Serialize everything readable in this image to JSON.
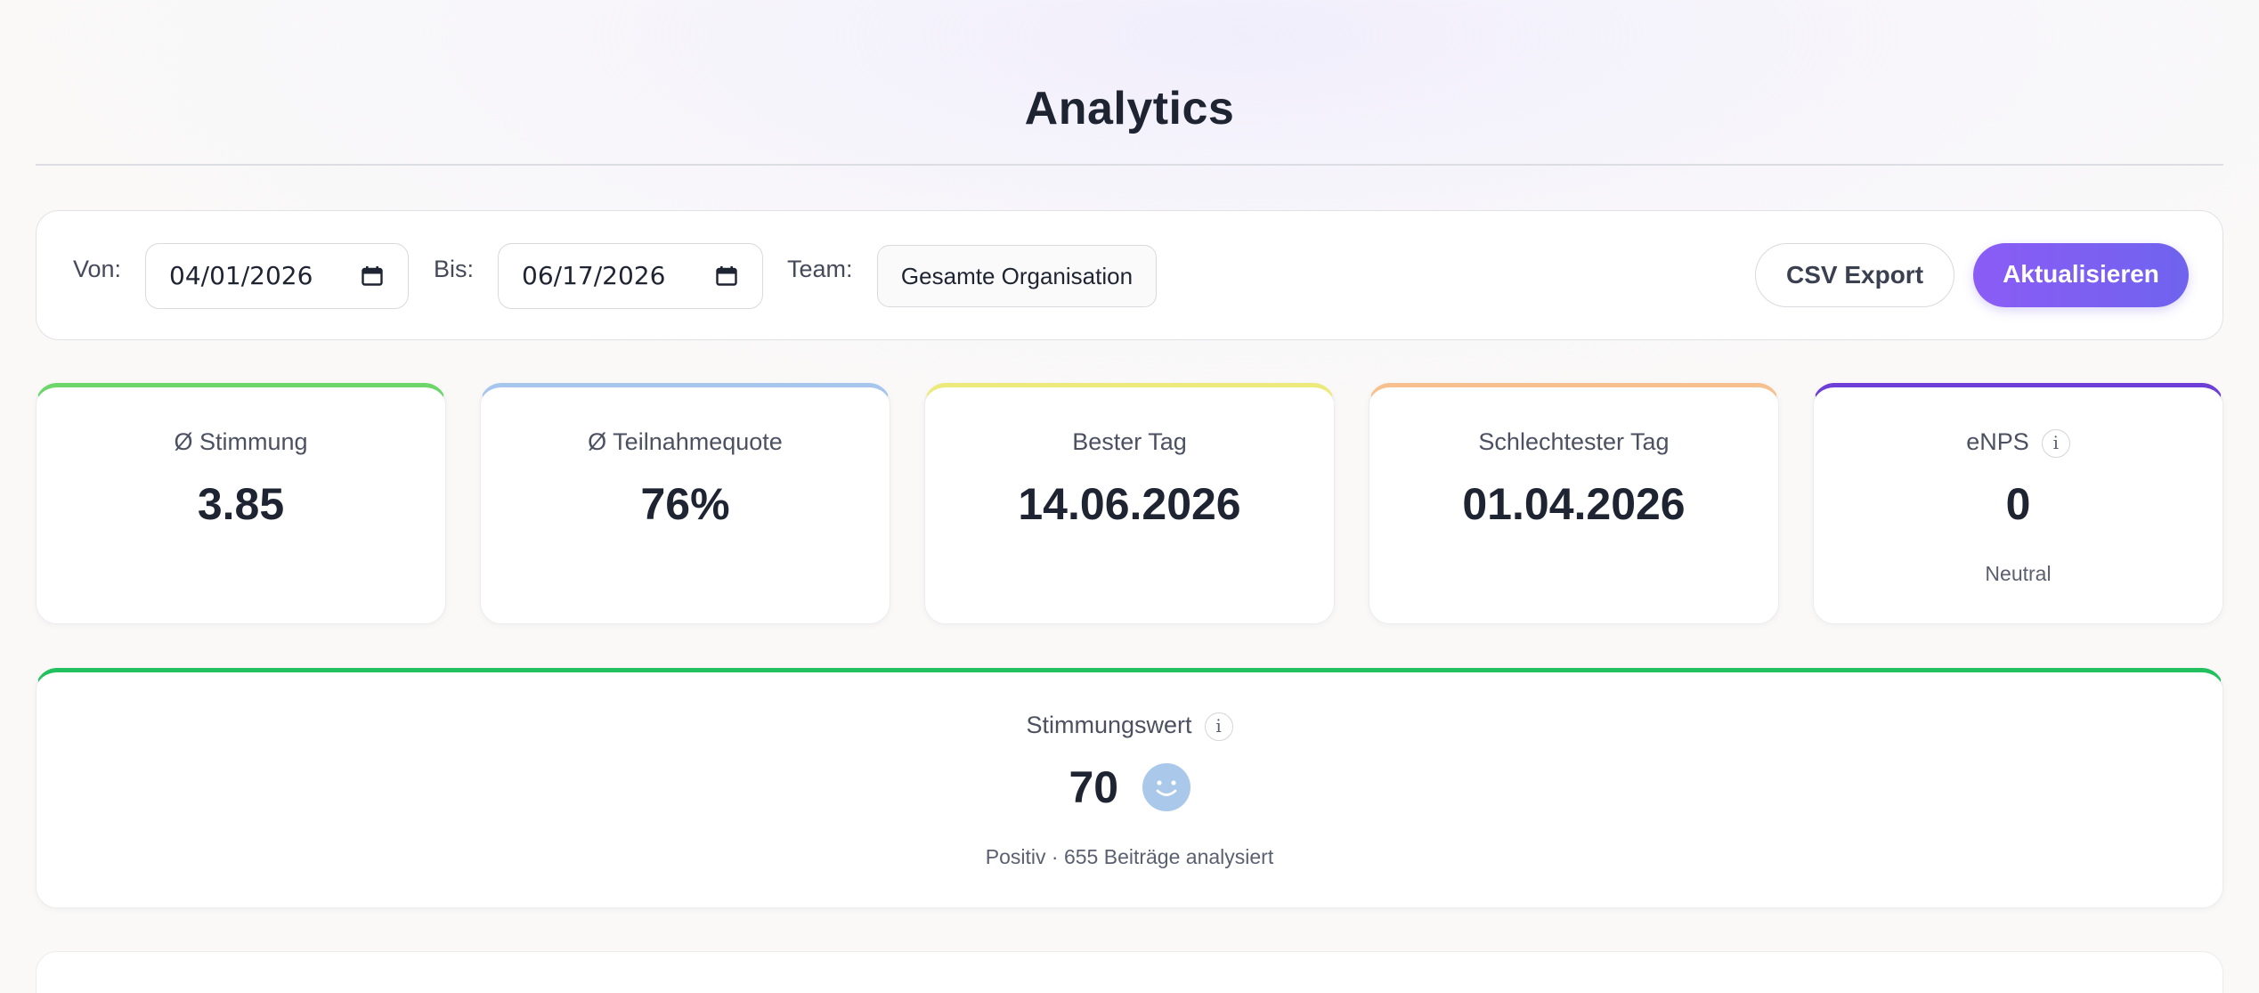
{
  "page": {
    "title": "Analytics"
  },
  "filters": {
    "from_label": "Von:",
    "from_value": "04/01/2026",
    "to_label": "Bis:",
    "to_value": "06/17/2026",
    "team_label": "Team:",
    "team_value": "Gesamte Organisation",
    "csv_button": "CSV Export",
    "refresh_button": "Aktualisieren"
  },
  "kpis": [
    {
      "label": "Ø Stimmung",
      "value": "3.85",
      "accent": "#6dd66a"
    },
    {
      "label": "Ø Teilnahmequote",
      "value": "76%",
      "accent": "#a7c6ee"
    },
    {
      "label": "Bester Tag",
      "value": "14.06.2026",
      "accent": "#ecea7a"
    },
    {
      "label": "Schlechtester Tag",
      "value": "01.04.2026",
      "accent": "#f6c08f"
    },
    {
      "label": "eNPS",
      "value": "0",
      "sub": "Neutral",
      "accent": "#6d3fd6",
      "info_icon": "info-icon"
    }
  ],
  "sentiment": {
    "label": "Stimmungswert",
    "score": "70",
    "icon": "smiley-face-icon",
    "summary": "Positiv · 655 Beiträge analysiert",
    "accent": "#22c05e"
  },
  "colors": {
    "primary_gradient_start": "#8b5cf6",
    "primary_gradient_end": "#6f63ee",
    "smiley": "#a9c8ea"
  }
}
